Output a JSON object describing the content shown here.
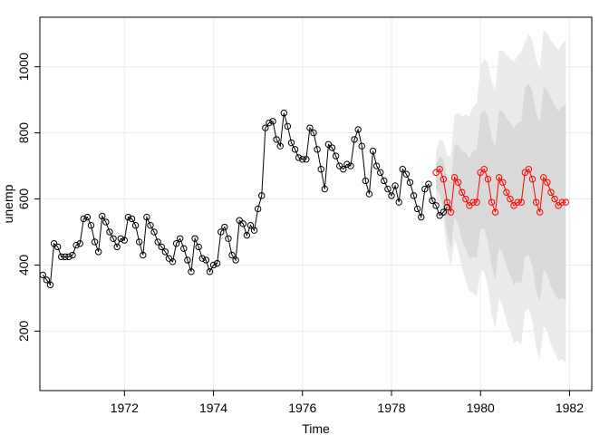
{
  "chart_data": {
    "type": "line",
    "title": "",
    "xlabel": "Time",
    "ylabel": "unemp",
    "xlim": [
      1970.1,
      1982.5
    ],
    "ylim": [
      20,
      1150
    ],
    "grid": true,
    "x_ticks": [
      1972,
      1974,
      1976,
      1978,
      1980,
      1982
    ],
    "x_tick_labels": [
      "1972",
      "1974",
      "1976",
      "1978",
      "1980",
      "1982"
    ],
    "y_ticks": [
      200,
      400,
      600,
      800,
      1000
    ],
    "y_tick_labels": [
      "200",
      "400",
      "600",
      "800",
      "1000"
    ],
    "colors": {
      "observed": "#000000",
      "forecast": "#ff0000",
      "band_80": "#d9d9d9",
      "band_95": "#ebebeb",
      "grid": "#ebebeb"
    },
    "observed": {
      "start": 1970.167,
      "step": 0.08333,
      "values": [
        370,
        355,
        340,
        465,
        455,
        425,
        425,
        425,
        430,
        460,
        465,
        540,
        545,
        520,
        470,
        440,
        548,
        530,
        500,
        480,
        455,
        480,
        475,
        545,
        540,
        520,
        470,
        430,
        545,
        520,
        500,
        470,
        455,
        440,
        420,
        410,
        465,
        480,
        450,
        415,
        380,
        480,
        455,
        420,
        415,
        380,
        400,
        405,
        500,
        515,
        480,
        430,
        415,
        535,
        525,
        490,
        520,
        505,
        570,
        610,
        815,
        830,
        835,
        780,
        760,
        860,
        820,
        770,
        750,
        725,
        720,
        720,
        815,
        800,
        750,
        690,
        630,
        765,
        755,
        730,
        700,
        690,
        705,
        700,
        780,
        810,
        760,
        655,
        615,
        745,
        700,
        680,
        655,
        630,
        610,
        640,
        590,
        690,
        675,
        650,
        610,
        570,
        545,
        630,
        645,
        595,
        580,
        550,
        560,
        575
      ]
    },
    "forecast": {
      "start": 1979.0,
      "step": 0.08333,
      "values": [
        680,
        690,
        660,
        590,
        560,
        665,
        650,
        620,
        600,
        580,
        590,
        590,
        680,
        690,
        660,
        590,
        560,
        665,
        650,
        620,
        600,
        580,
        590,
        590,
        680,
        690,
        660,
        590,
        560,
        665,
        650,
        620,
        600,
        580,
        590,
        590
      ]
    },
    "band_80": {
      "upper": [
        705,
        730,
        720,
        665,
        650,
        765,
        765,
        745,
        740,
        725,
        745,
        750,
        855,
        870,
        850,
        785,
        760,
        870,
        865,
        845,
        830,
        815,
        830,
        835,
        935,
        950,
        925,
        860,
        830,
        940,
        930,
        905,
        885,
        865,
        880,
        885
      ],
      "lower": [
        630,
        615,
        570,
        495,
        450,
        545,
        525,
        475,
        450,
        420,
        425,
        420,
        510,
        510,
        470,
        395,
        355,
        455,
        435,
        395,
        370,
        340,
        350,
        345,
        425,
        430,
        395,
        320,
        290,
        385,
        370,
        335,
        315,
        295,
        300,
        295
      ]
    },
    "band_95": {
      "upper": [
        745,
        780,
        775,
        730,
        730,
        855,
        860,
        850,
        855,
        850,
        880,
        890,
        1000,
        1025,
        1010,
        955,
        930,
        1050,
        1050,
        1035,
        1025,
        1015,
        1035,
        1045,
        1075,
        1100,
        1080,
        1020,
        995,
        1110,
        1100,
        1080,
        1065,
        1050,
        1070,
        1080
      ],
      "lower": [
        600,
        580,
        530,
        445,
        395,
        475,
        445,
        390,
        355,
        320,
        315,
        305,
        385,
        380,
        335,
        250,
        205,
        300,
        275,
        230,
        200,
        165,
        170,
        160,
        260,
        270,
        230,
        150,
        115,
        215,
        200,
        160,
        135,
        110,
        115,
        105
      ]
    }
  }
}
